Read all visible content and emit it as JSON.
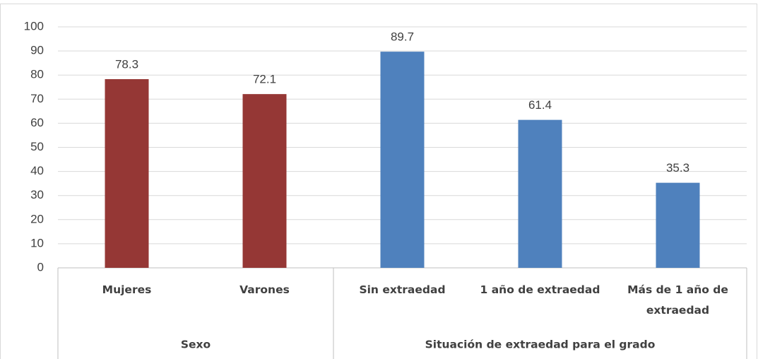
{
  "chart_data": {
    "type": "bar",
    "groups": [
      {
        "name": "Sexo",
        "color": "#953735",
        "categories": [
          "Mujeres",
          "Varones"
        ],
        "values": [
          78.3,
          72.1
        ]
      },
      {
        "name": "Situación de extraedad para el grado",
        "color": "#4f81bd",
        "categories": [
          "Sin extraedad",
          "1 año de extraedad",
          "Más de 1 año de extraedad"
        ],
        "values": [
          89.7,
          61.4,
          35.3
        ]
      }
    ],
    "ylim": [
      0,
      100
    ],
    "yticks": [
      0,
      10,
      20,
      30,
      40,
      50,
      60,
      70,
      80,
      90,
      100
    ],
    "grid": true
  }
}
